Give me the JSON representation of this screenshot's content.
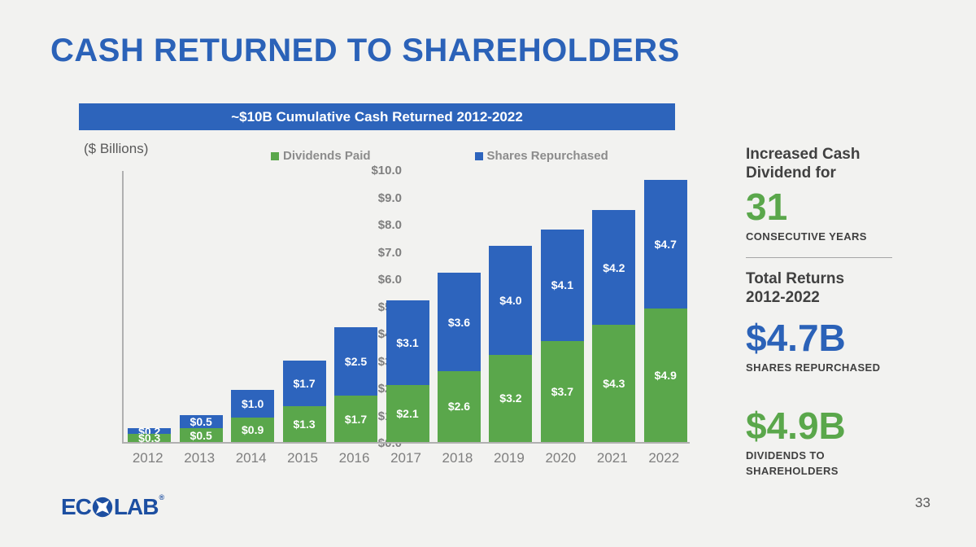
{
  "slide": {
    "title": "CASH RETURNED TO SHAREHOLDERS",
    "banner": "~$10B Cumulative Cash Returned 2012-2022",
    "page_number": "33",
    "logo": {
      "left": "EC",
      "right": "LAB",
      "reg": "®"
    }
  },
  "chart_data": {
    "type": "bar",
    "stacked": true,
    "title": "~$10B Cumulative Cash Returned 2012-2022",
    "units_label": "($ Billions)",
    "categories": [
      "2012",
      "2013",
      "2014",
      "2015",
      "2016",
      "2017",
      "2018",
      "2019",
      "2020",
      "2021",
      "2022"
    ],
    "series": [
      {
        "name": "Dividends Paid",
        "color": "#5aa74b",
        "values": [
          0.3,
          0.5,
          0.9,
          1.3,
          1.7,
          2.1,
          2.6,
          3.2,
          3.7,
          4.3,
          4.9
        ]
      },
      {
        "name": "Shares Repurchased",
        "color": "#2d64bd",
        "values": [
          0.2,
          0.5,
          1.0,
          1.7,
          2.5,
          3.1,
          3.6,
          4.0,
          4.1,
          4.2,
          4.7
        ]
      }
    ],
    "y_axis": {
      "min": 0,
      "max": 10,
      "step": 1,
      "tick_prefix": "$",
      "tick_decimals": 1
    },
    "bar_label_prefix": "$",
    "legend_position": "top",
    "grid": false
  },
  "sidebar": {
    "increased_line1": "Increased Cash",
    "increased_line2": "Dividend for",
    "years_number": "31",
    "years_caption": "CONSECUTIVE YEARS",
    "total_line1": "Total Returns",
    "total_line2": "2012-2022",
    "shares_value": "$4.7B",
    "shares_caption": "SHARES REPURCHASED",
    "dividends_value": "$4.9B",
    "dividends_caption_line1": "DIVIDENDS TO",
    "dividends_caption_line2": "SHAREHOLDERS",
    "accent_green": "#5aa74b",
    "accent_blue": "#2b62b8"
  }
}
